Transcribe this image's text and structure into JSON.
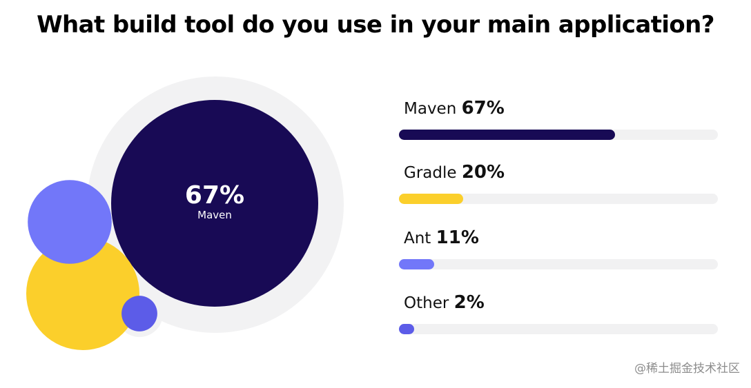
{
  "title": "What build tool do you use in your main application?",
  "watermark": "@稀土掘金技术社区",
  "chart_data": {
    "type": "bar",
    "title": "What build tool do you use in your main application?",
    "categories": [
      "Maven",
      "Gradle",
      "Ant",
      "Other"
    ],
    "values": [
      67,
      20,
      11,
      2
    ],
    "value_labels": [
      "67%",
      "20%",
      "11%",
      "2%"
    ],
    "colors": [
      "#180a55",
      "#fbcf2b",
      "#7277f9",
      "#5c5ce8"
    ],
    "ylim": [
      0,
      100
    ],
    "highlight": {
      "percent_label": "67%",
      "name": "Maven"
    }
  }
}
